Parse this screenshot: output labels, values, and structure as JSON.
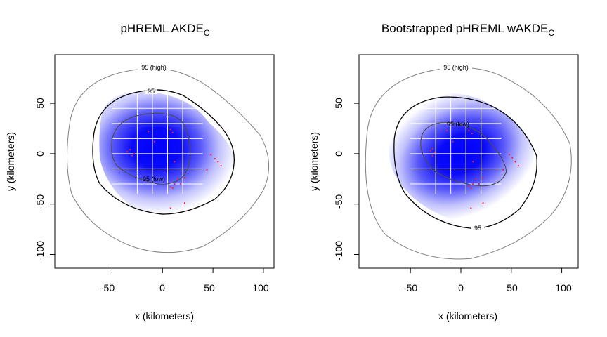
{
  "chart_data": [
    {
      "type": "heatmap",
      "title": "pHREML AKDE",
      "title_subscript": "C",
      "xlabel": "x (kilometers)",
      "ylabel": "y (kilometers)",
      "xlim": [
        -100,
        112
      ],
      "ylim": [
        -112,
        100
      ],
      "xticks": [
        -50,
        0,
        50,
        100
      ],
      "yticks": [
        -100,
        -50,
        0,
        50
      ],
      "grid": true,
      "fill_color": "#0000ff",
      "contours": [
        {
          "label": "95 (high)",
          "color": "#808080"
        },
        {
          "label": "95",
          "color": "#000000"
        },
        {
          "label": "95 (low)",
          "color": "#4d4d4d"
        }
      ],
      "points": [
        [
          -35,
          2
        ],
        [
          -32,
          4
        ],
        [
          -28,
          0
        ],
        [
          -30,
          -2
        ],
        [
          -14,
          22
        ],
        [
          -8,
          12
        ],
        [
          8,
          24
        ],
        [
          10,
          21
        ],
        [
          12,
          -8
        ],
        [
          15,
          -25
        ],
        [
          12,
          -30
        ],
        [
          10,
          -34
        ],
        [
          8,
          -33
        ],
        [
          18,
          -30
        ],
        [
          22,
          -24
        ],
        [
          48,
          -1
        ],
        [
          52,
          -5
        ],
        [
          55,
          -8
        ],
        [
          58,
          -12
        ],
        [
          44,
          -16
        ],
        [
          8,
          -54
        ],
        [
          22,
          -49
        ]
      ]
    },
    {
      "type": "heatmap",
      "title": "Bootstrapped pHREML wAKDE",
      "title_subscript": "C",
      "xlabel": "x (kilometers)",
      "ylabel": "y (kilometers)",
      "xlim": [
        -100,
        112
      ],
      "ylim": [
        -112,
        100
      ],
      "xticks": [
        -50,
        0,
        50,
        100
      ],
      "yticks": [
        -100,
        -50,
        0,
        50
      ],
      "grid": true,
      "fill_color": "#0000ff",
      "contours": [
        {
          "label": "95 (high)",
          "color": "#808080"
        },
        {
          "label": "95",
          "color": "#000000"
        },
        {
          "label": "95 (low)",
          "color": "#4d4d4d"
        }
      ],
      "points": [
        [
          -30,
          3
        ],
        [
          -28,
          5
        ],
        [
          -26,
          1
        ],
        [
          -28,
          -2
        ],
        [
          -14,
          23
        ],
        [
          -8,
          12
        ],
        [
          8,
          23
        ],
        [
          11,
          20
        ],
        [
          12,
          -8
        ],
        [
          15,
          -25
        ],
        [
          12,
          -30
        ],
        [
          10,
          -34
        ],
        [
          8,
          -32
        ],
        [
          18,
          -30
        ],
        [
          22,
          -24
        ],
        [
          48,
          -1
        ],
        [
          51,
          -4
        ],
        [
          54,
          -8
        ],
        [
          57,
          -12
        ],
        [
          42,
          -16
        ],
        [
          10,
          -54
        ],
        [
          22,
          -49
        ]
      ]
    }
  ]
}
